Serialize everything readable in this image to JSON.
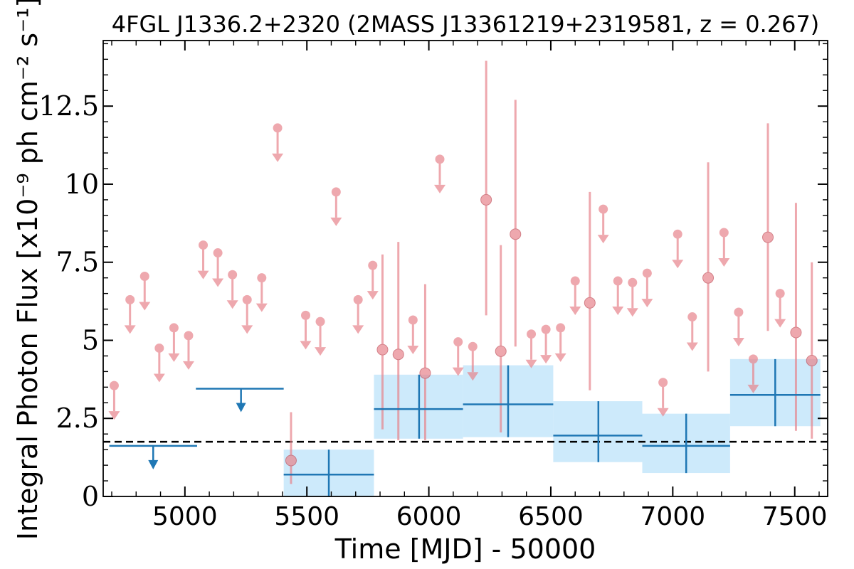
{
  "chart_data": {
    "type": "scatter",
    "title": "4FGL J1336.2+2320 (2MASS J13361219+2319581, z = 0.267)",
    "xlabel": "Time [MJD] - 50000",
    "ylabel": "Integral Photon Flux [x10⁻⁹ ph cm⁻² s⁻¹]",
    "xlim": [
      4665,
      7635
    ],
    "ylim": [
      0,
      14.6
    ],
    "x_ticks": [
      5000,
      5500,
      6000,
      6500,
      7000,
      7500
    ],
    "x_tick_labels": [
      "5000",
      "5500",
      "6000",
      "6500",
      "7000",
      "7500"
    ],
    "y_ticks": [
      0,
      2.5,
      5,
      7.5,
      10,
      12.5
    ],
    "y_tick_labels": [
      "0",
      "2.5",
      "5",
      "7.5",
      "10",
      "12.5"
    ],
    "reference_line": {
      "y": 1.75,
      "style": "dashed"
    },
    "colors": {
      "monthly": "#e8848c",
      "yearly": "#1f77b4",
      "band": "#cdeafb",
      "reference": "#000000"
    },
    "series": [
      {
        "upper_limits": [
          {
            "x": 4710,
            "y": 3.55
          },
          {
            "x": 4775,
            "y": 6.3
          },
          {
            "x": 4835,
            "y": 7.05
          },
          {
            "x": 4895,
            "y": 4.75
          },
          {
            "x": 4955,
            "y": 5.4
          },
          {
            "x": 5015,
            "y": 5.15
          },
          {
            "x": 5075,
            "y": 8.05
          },
          {
            "x": 5135,
            "y": 7.8
          },
          {
            "x": 5195,
            "y": 7.1
          },
          {
            "x": 5255,
            "y": 6.3
          },
          {
            "x": 5315,
            "y": 7.0
          },
          {
            "x": 5380,
            "y": 11.8
          },
          {
            "x": 5495,
            "y": 5.8
          },
          {
            "x": 5555,
            "y": 5.6
          },
          {
            "x": 5620,
            "y": 9.75
          },
          {
            "x": 5710,
            "y": 6.3
          },
          {
            "x": 5770,
            "y": 7.4
          },
          {
            "x": 5935,
            "y": 5.65
          },
          {
            "x": 6045,
            "y": 10.8
          },
          {
            "x": 6120,
            "y": 4.95
          },
          {
            "x": 6180,
            "y": 4.8
          },
          {
            "x": 6420,
            "y": 5.2
          },
          {
            "x": 6480,
            "y": 5.35
          },
          {
            "x": 6540,
            "y": 5.4
          },
          {
            "x": 6600,
            "y": 6.9
          },
          {
            "x": 6715,
            "y": 9.2
          },
          {
            "x": 6775,
            "y": 6.9
          },
          {
            "x": 6835,
            "y": 6.85
          },
          {
            "x": 6895,
            "y": 7.15
          },
          {
            "x": 6960,
            "y": 3.65
          },
          {
            "x": 7020,
            "y": 8.4
          },
          {
            "x": 7080,
            "y": 5.75
          },
          {
            "x": 7210,
            "y": 8.45
          },
          {
            "x": 7270,
            "y": 5.9
          },
          {
            "x": 7330,
            "y": 4.4
          },
          {
            "x": 7440,
            "y": 6.5
          }
        ],
        "detections": [
          {
            "x": 5435,
            "y": 1.15,
            "lo": 0.4,
            "hi": 2.7
          },
          {
            "x": 5810,
            "y": 4.7,
            "lo": 2.15,
            "hi": 7.75
          },
          {
            "x": 5875,
            "y": 4.55,
            "lo": 1.8,
            "hi": 8.15
          },
          {
            "x": 5985,
            "y": 3.95,
            "lo": 1.8,
            "hi": 6.8
          },
          {
            "x": 6235,
            "y": 9.5,
            "lo": 5.8,
            "hi": 13.95
          },
          {
            "x": 6295,
            "y": 4.65,
            "lo": 2.05,
            "hi": 8.05
          },
          {
            "x": 6355,
            "y": 8.4,
            "lo": 4.8,
            "hi": 12.7
          },
          {
            "x": 6660,
            "y": 6.2,
            "lo": 3.4,
            "hi": 9.75
          },
          {
            "x": 7145,
            "y": 7.0,
            "lo": 4.0,
            "hi": 10.7
          },
          {
            "x": 7390,
            "y": 8.3,
            "lo": 5.3,
            "hi": 11.95
          },
          {
            "x": 7505,
            "y": 5.25,
            "lo": 2.1,
            "hi": 9.4
          },
          {
            "x": 7570,
            "y": 4.35,
            "lo": 1.85,
            "hi": 7.5
          }
        ]
      },
      {
        "upper_limits": [
          {
            "x0": 4690,
            "x1": 5050,
            "y": 1.62,
            "xc": 4870
          },
          {
            "x0": 5045,
            "x1": 5405,
            "y": 3.45,
            "xc": 5230
          }
        ],
        "detections": [
          {
            "x0": 5405,
            "x1": 5775,
            "xc": 5590,
            "y": 0.7,
            "lo": 0.0,
            "hi": 1.5
          },
          {
            "x0": 5775,
            "x1": 6140,
            "xc": 5960,
            "y": 2.8,
            "lo": 1.85,
            "hi": 3.9
          },
          {
            "x0": 6140,
            "x1": 6510,
            "xc": 6325,
            "y": 2.95,
            "lo": 1.9,
            "hi": 4.2
          },
          {
            "x0": 6510,
            "x1": 6875,
            "xc": 6695,
            "y": 1.95,
            "lo": 1.1,
            "hi": 3.05
          },
          {
            "x0": 6875,
            "x1": 7235,
            "xc": 7055,
            "y": 1.62,
            "lo": 0.75,
            "hi": 2.65
          },
          {
            "x0": 7235,
            "x1": 7605,
            "xc": 7420,
            "y": 3.25,
            "lo": 2.25,
            "hi": 4.4
          }
        ]
      }
    ]
  }
}
